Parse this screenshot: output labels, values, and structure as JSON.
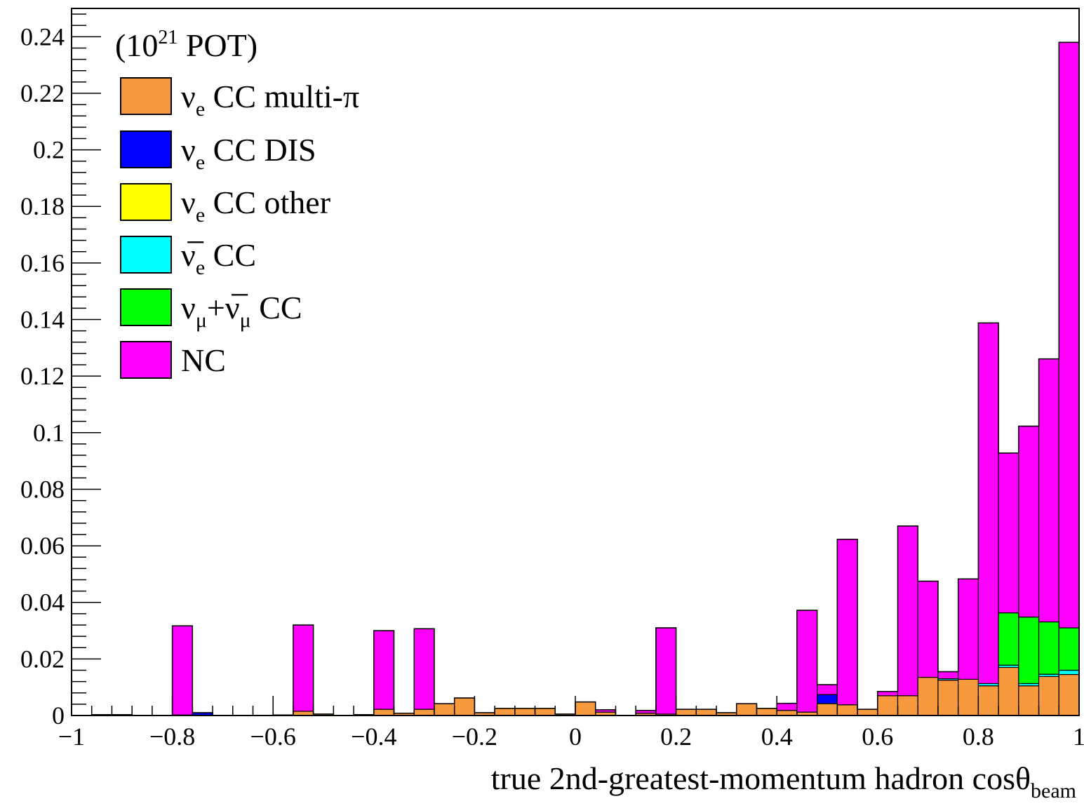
{
  "chart_data": {
    "type": "bar",
    "subtype": "stacked-histogram",
    "legend_header": {
      "base": "(10",
      "sup": "21",
      "rest": " POT)"
    },
    "xlabel": {
      "main": "true 2nd-greatest-momentum hadron cosθ",
      "sub": "beam"
    },
    "ylabel": "",
    "xlim": [
      -1,
      1
    ],
    "ylim": [
      0,
      0.25
    ],
    "bin_width": 0.04,
    "x_ticks": [
      "−1",
      "−0.8",
      "−0.6",
      "−0.4",
      "−0.2",
      "0",
      "0.2",
      "0.4",
      "0.6",
      "0.8",
      "1"
    ],
    "y_ticks": [
      "0",
      "0.02",
      "0.04",
      "0.06",
      "0.08",
      "0.1",
      "0.12",
      "0.14",
      "0.16",
      "0.18",
      "0.2",
      "0.22",
      "0.24"
    ],
    "legend_position": "top-left",
    "bin_low_edges": [
      -1.0,
      -0.96,
      -0.92,
      -0.88,
      -0.84,
      -0.8,
      -0.76,
      -0.72,
      -0.68,
      -0.64,
      -0.6,
      -0.56,
      -0.52,
      -0.48,
      -0.44,
      -0.4,
      -0.36,
      -0.32,
      -0.28,
      -0.24,
      -0.2,
      -0.16,
      -0.12,
      -0.08,
      -0.04,
      0.0,
      0.04,
      0.08,
      0.12,
      0.16,
      0.2,
      0.24,
      0.28,
      0.32,
      0.36,
      0.4,
      0.44,
      0.48,
      0.52,
      0.56,
      0.6,
      0.64,
      0.68,
      0.72,
      0.76,
      0.8,
      0.84,
      0.88,
      0.92,
      0.96
    ],
    "series": [
      {
        "name": "ν_e CC multi-π",
        "label_main": "ν",
        "label_sub": "e",
        "label_rest": " CC multi-π",
        "color": "#f79a3e",
        "values": [
          0,
          0.0003,
          0.0003,
          0,
          0,
          0,
          0,
          0,
          0,
          0,
          0.0002,
          0.0015,
          0.0005,
          0,
          0.0003,
          0.0022,
          0.0008,
          0.0022,
          0.0042,
          0.0062,
          0.001,
          0.0025,
          0.0025,
          0.0025,
          0.0005,
          0.0048,
          0.0012,
          0,
          0.0008,
          0.0005,
          0.0022,
          0.0022,
          0.001,
          0.0042,
          0.0025,
          0.0018,
          0.0012,
          0.0042,
          0.0038,
          0.0022,
          0.007,
          0.007,
          0.0135,
          0.0125,
          0.0128,
          0.0105,
          0.017,
          0.0105,
          0.0138,
          0.0145
        ]
      },
      {
        "name": "ν_e CC DIS",
        "label_main": "ν",
        "label_sub": "e",
        "label_rest": " CC DIS",
        "color": "#0000ff",
        "values": [
          0,
          0,
          0,
          0,
          0,
          0.0002,
          0.001,
          0,
          0,
          0,
          0,
          0,
          0,
          0,
          0,
          0,
          0,
          0,
          0,
          0,
          0,
          0,
          0,
          0,
          0,
          0,
          0,
          0,
          0,
          0,
          0,
          0,
          0,
          0,
          0,
          0,
          0,
          0.0032,
          0,
          0,
          0,
          0,
          0,
          0,
          0,
          0,
          0,
          0,
          0,
          0
        ]
      },
      {
        "name": "ν_e CC other",
        "label_main": "ν",
        "label_sub": "e",
        "label_rest": " CC other",
        "color": "#ffff00",
        "values": [
          0,
          0,
          0,
          0,
          0,
          0,
          0,
          0,
          0,
          0,
          0,
          0,
          0,
          0,
          0,
          0,
          0,
          0,
          0,
          0,
          0,
          0,
          0,
          0,
          0,
          0,
          0,
          0,
          0,
          0,
          0,
          0,
          0,
          0,
          0,
          0,
          0,
          0,
          0,
          0,
          0,
          0,
          0,
          0,
          0,
          0,
          0,
          0,
          0,
          0
        ]
      },
      {
        "name": "ν̅_e CC",
        "label_main": "ν̅",
        "label_sub": "e",
        "label_rest": " CC",
        "color": "#00ffff",
        "values": [
          0,
          0,
          0,
          0,
          0,
          0,
          0,
          0,
          0,
          0,
          0,
          0,
          0,
          0,
          0,
          0,
          0,
          0,
          0,
          0,
          0,
          0,
          0,
          0,
          0,
          0,
          0,
          0,
          0,
          0,
          0,
          0,
          0,
          0,
          0,
          0,
          0,
          0,
          0,
          0,
          0,
          0,
          0,
          0.0005,
          0,
          0.0008,
          0.0008,
          0.0008,
          0.0008,
          0.0015
        ]
      },
      {
        "name": "ν_μ+ν̅_μ CC",
        "label_main": "ν",
        "label_sub": "μ",
        "label_mid": "+ν̅",
        "label_sub2": "μ",
        "label_rest": " CC",
        "color": "#00ff00",
        "values": [
          0,
          0,
          0,
          0,
          0,
          0,
          0,
          0,
          0,
          0,
          0,
          0,
          0,
          0,
          0,
          0,
          0,
          0,
          0,
          0,
          0,
          0,
          0,
          0,
          0,
          0,
          0,
          0,
          0,
          0,
          0,
          0,
          0,
          0,
          0,
          0,
          0,
          0,
          0,
          0,
          0,
          0,
          0,
          0,
          0,
          0,
          0.0185,
          0.0235,
          0.0185,
          0.015
        ]
      },
      {
        "name": "NC",
        "label_main": "NC",
        "label_sub": "",
        "label_rest": "",
        "color": "#ff00ff",
        "values": [
          0,
          0,
          0,
          0,
          0,
          0.0315,
          0,
          0,
          0,
          0,
          0,
          0.0305,
          0,
          0,
          0,
          0.0278,
          0,
          0.0285,
          0,
          0,
          0,
          0,
          0,
          0,
          0,
          0,
          0.0008,
          0,
          0.001,
          0.0305,
          0,
          0,
          0,
          0,
          0,
          0.0025,
          0.036,
          0.0035,
          0.0585,
          0,
          0.0015,
          0.06,
          0.034,
          0.0025,
          0.0355,
          0.1275,
          0.0565,
          0.0675,
          0.093,
          0.207
        ]
      }
    ]
  }
}
